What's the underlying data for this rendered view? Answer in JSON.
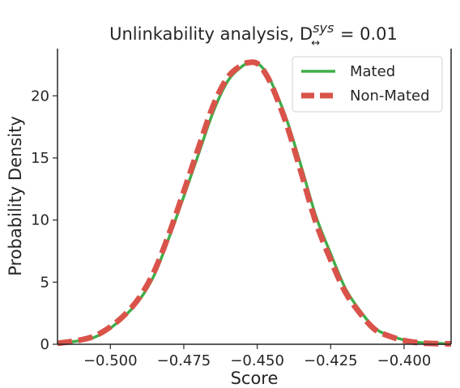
{
  "chart_data": {
    "type": "line",
    "title": {
      "prefix": "Unlinkability analysis, D",
      "superscript": "sys",
      "subscript": "↔",
      "suffix": " = 0.01"
    },
    "xlabel": "Score",
    "ylabel": "Probability Density",
    "xlim": [
      -0.518,
      -0.384
    ],
    "ylim": [
      0,
      23.8
    ],
    "xticks": [
      -0.5,
      -0.475,
      -0.45,
      -0.425,
      -0.4
    ],
    "xtick_labels": [
      "−0.500",
      "−0.475",
      "−0.450",
      "−0.425",
      "−0.400"
    ],
    "yticks": [
      0,
      5,
      10,
      15,
      20
    ],
    "ytick_labels": [
      "0",
      "5",
      "10",
      "15",
      "20"
    ],
    "grid": false,
    "legend_position": "top-right",
    "series": [
      {
        "name": "Mated",
        "color": "#3fae49",
        "style": "solid",
        "x": [
          -0.518,
          -0.51,
          -0.505,
          -0.5,
          -0.495,
          -0.49,
          -0.485,
          -0.48,
          -0.475,
          -0.47,
          -0.465,
          -0.46,
          -0.455,
          -0.452,
          -0.45,
          -0.448,
          -0.445,
          -0.44,
          -0.435,
          -0.43,
          -0.425,
          -0.42,
          -0.415,
          -0.41,
          -0.405,
          -0.4,
          -0.395,
          -0.39,
          -0.384
        ],
        "y": [
          0.05,
          0.3,
          0.6,
          1.3,
          2.3,
          3.6,
          5.6,
          8.6,
          11.9,
          15.3,
          18.7,
          21.2,
          22.4,
          22.7,
          22.6,
          22.2,
          21.0,
          18.1,
          14.3,
          10.3,
          7.3,
          4.5,
          2.7,
          1.3,
          0.7,
          0.35,
          0.15,
          0.08,
          0.04
        ]
      },
      {
        "name": "Non-Mated",
        "color": "#d9534a",
        "style": "dashed",
        "x": [
          -0.518,
          -0.51,
          -0.505,
          -0.5,
          -0.495,
          -0.49,
          -0.485,
          -0.48,
          -0.475,
          -0.47,
          -0.465,
          -0.46,
          -0.455,
          -0.452,
          -0.45,
          -0.448,
          -0.445,
          -0.44,
          -0.435,
          -0.43,
          -0.425,
          -0.42,
          -0.415,
          -0.41,
          -0.405,
          -0.4,
          -0.395,
          -0.39,
          -0.384
        ],
        "y": [
          0.07,
          0.35,
          0.7,
          1.4,
          2.4,
          3.8,
          5.9,
          8.9,
          12.3,
          15.8,
          19.2,
          21.5,
          22.5,
          22.7,
          22.6,
          22.1,
          20.8,
          17.7,
          13.8,
          9.8,
          6.8,
          4.2,
          2.5,
          1.2,
          0.65,
          0.3,
          0.12,
          0.06,
          0.03
        ]
      }
    ]
  }
}
